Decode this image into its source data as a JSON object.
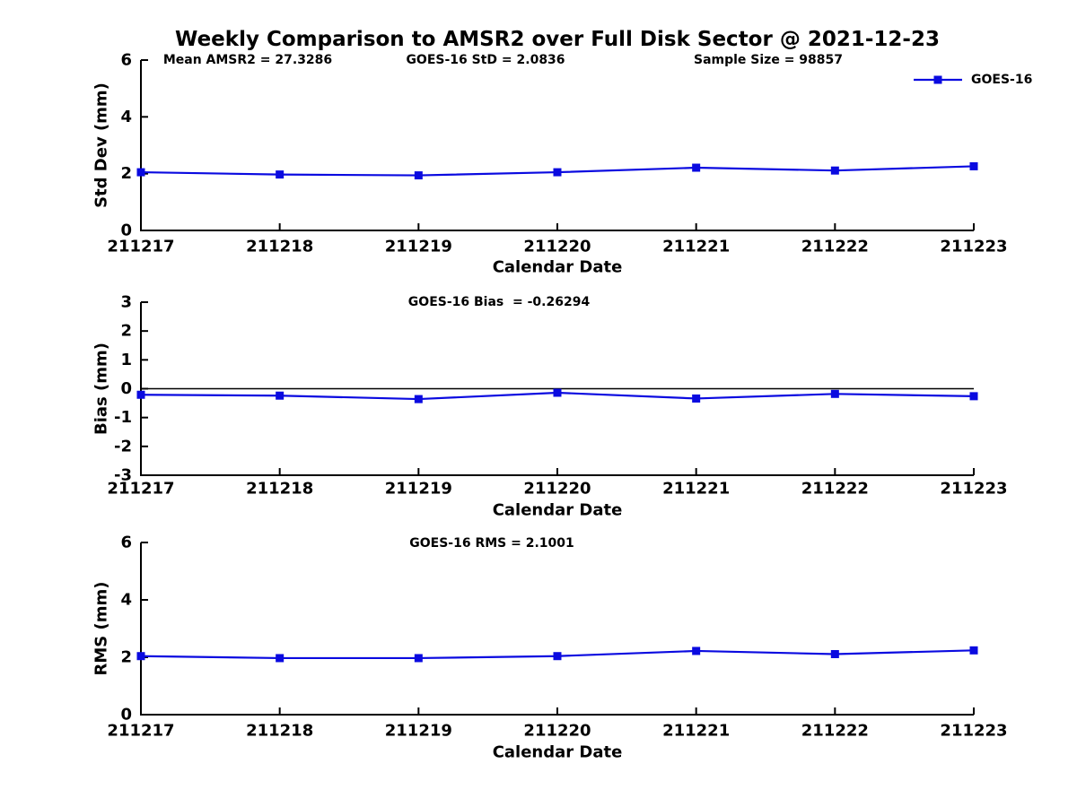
{
  "title": "Weekly Comparison to AMSR2 over Full Disk Sector @ 2021-12-23",
  "colors": {
    "series": "#0a0ae0",
    "axis": "#000000",
    "text": "#000000",
    "background": "#ffffff"
  },
  "legend": {
    "label": "GOES-16",
    "position": "top-right"
  },
  "chart_data": [
    {
      "type": "line",
      "name": "std-dev-plot",
      "annotations": [
        "Mean AMSR2 = 27.3286",
        "GOES-16 StD = 2.0836",
        "Sample Size = 98857"
      ],
      "categories": [
        "211217",
        "211218",
        "211219",
        "211220",
        "211221",
        "211222",
        "211223"
      ],
      "series": [
        {
          "name": "GOES-16",
          "values": [
            2.05,
            1.97,
            1.94,
            2.05,
            2.21,
            2.11,
            2.26
          ]
        }
      ],
      "xlabel": "Calendar Date",
      "ylabel": "Std Dev (mm)",
      "ylim": [
        0,
        6
      ],
      "yticks": [
        0,
        2,
        4,
        6
      ],
      "zero_line": false,
      "grid": false,
      "legend": "GOES-16",
      "legend_position": "top-right"
    },
    {
      "type": "line",
      "name": "bias-plot",
      "annotations": [
        "GOES-16 Bias  = -0.26294"
      ],
      "categories": [
        "211217",
        "211218",
        "211219",
        "211220",
        "211221",
        "211222",
        "211223"
      ],
      "series": [
        {
          "name": "GOES-16",
          "values": [
            -0.21,
            -0.24,
            -0.36,
            -0.14,
            -0.34,
            -0.18,
            -0.26
          ]
        }
      ],
      "xlabel": "Calendar Date",
      "ylabel": "Bias (mm)",
      "ylim": [
        -3,
        3
      ],
      "yticks": [
        -3,
        -2,
        -1,
        0,
        1,
        2,
        3
      ],
      "zero_line": true,
      "grid": false
    },
    {
      "type": "line",
      "name": "rms-plot",
      "annotations": [
        "GOES-16 RMS = 2.1001"
      ],
      "categories": [
        "211217",
        "211218",
        "211219",
        "211220",
        "211221",
        "211222",
        "211223"
      ],
      "series": [
        {
          "name": "GOES-16",
          "values": [
            2.04,
            1.97,
            1.97,
            2.04,
            2.22,
            2.11,
            2.24
          ]
        }
      ],
      "xlabel": "Calendar Date",
      "ylabel": "RMS (mm)",
      "ylim": [
        0,
        6
      ],
      "yticks": [
        0,
        2,
        4,
        6
      ],
      "zero_line": false,
      "grid": false
    }
  ]
}
